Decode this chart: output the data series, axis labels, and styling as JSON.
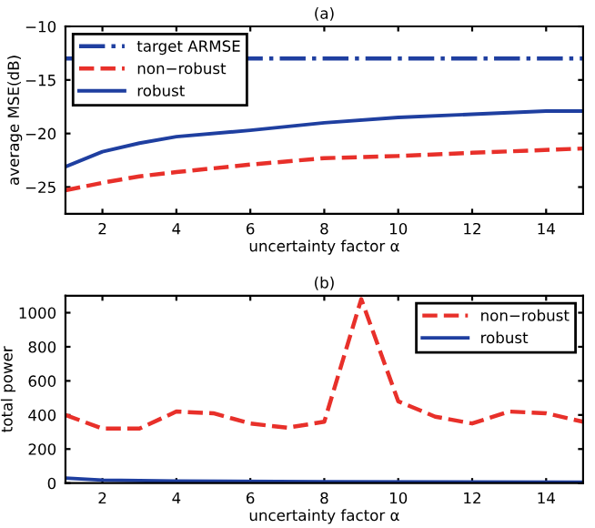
{
  "chart_data": [
    {
      "type": "line",
      "title": "(a)",
      "xlabel": "uncertainty factor α",
      "ylabel": "average MSE(dB)",
      "xlim": [
        1,
        15
      ],
      "xticks": [
        2,
        4,
        6,
        8,
        10,
        12,
        14
      ],
      "ylim": [
        -27.5,
        -10
      ],
      "yticks": [
        -25,
        -20,
        -15,
        -10
      ],
      "legend": "top left",
      "grid": false,
      "marker": "none",
      "series": [
        {
          "name": "target ARMSE",
          "color": "#1f3fa0",
          "line_style": "dashdot",
          "x": [
            1,
            15
          ],
          "values": [
            -13,
            -13
          ]
        },
        {
          "name": "non−robust",
          "color": "#e8302a",
          "line_style": "dashed",
          "x": [
            1,
            2,
            3,
            4,
            6,
            8,
            10,
            12,
            15
          ],
          "values": [
            -25.3,
            -24.6,
            -24.0,
            -23.6,
            -22.9,
            -22.3,
            -22.1,
            -21.8,
            -21.4
          ]
        },
        {
          "name": "robust",
          "color": "#1f3fa0",
          "line_style": "solid",
          "x": [
            1,
            2,
            3,
            4,
            6,
            8,
            10,
            12,
            14,
            15
          ],
          "values": [
            -23.1,
            -21.7,
            -20.9,
            -20.3,
            -19.7,
            -19.0,
            -18.5,
            -18.2,
            -17.9,
            -17.9
          ]
        }
      ]
    },
    {
      "type": "line",
      "title": "(b)",
      "xlabel": "uncertainty factor α",
      "ylabel": "total power",
      "xlim": [
        1,
        15
      ],
      "xticks": [
        2,
        4,
        6,
        8,
        10,
        12,
        14
      ],
      "ylim": [
        0,
        1100
      ],
      "yticks": [
        0,
        200,
        400,
        600,
        800,
        1000
      ],
      "legend": "top right",
      "grid": false,
      "marker": "none",
      "series": [
        {
          "name": "non−robust",
          "color": "#e8302a",
          "line_style": "dashed",
          "x": [
            1,
            1.5,
            2,
            3,
            4,
            5,
            6,
            7,
            8,
            9,
            10,
            11,
            12,
            13,
            14,
            15
          ],
          "values": [
            400,
            360,
            320,
            320,
            420,
            410,
            350,
            325,
            360,
            1080,
            480,
            390,
            350,
            420,
            410,
            360
          ]
        },
        {
          "name": "robust",
          "color": "#1f3fa0",
          "line_style": "solid",
          "x": [
            1,
            2,
            4,
            8,
            15
          ],
          "values": [
            30,
            18,
            12,
            8,
            5
          ]
        }
      ]
    }
  ]
}
